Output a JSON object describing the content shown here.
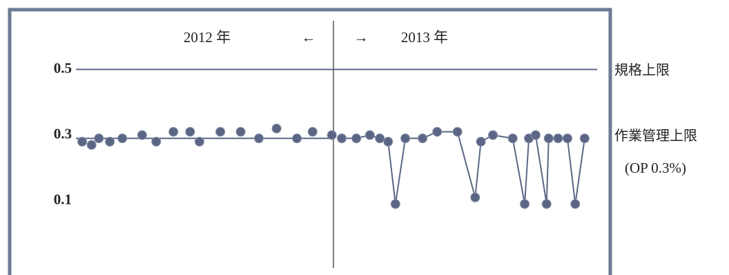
{
  "chart_data": {
    "type": "scatter",
    "annotations": [
      "2012 年",
      "←",
      "→",
      "2013 年"
    ],
    "divider_x": 49.4,
    "xlim": [
      0,
      100
    ],
    "ylim": [
      -0.12,
      0.68
    ],
    "yticks": [
      0.5,
      0.3,
      0.1
    ],
    "ref_lines": [
      {
        "value": 0.5,
        "label": "規格上限",
        "xrange": [
          0,
          100
        ]
      },
      {
        "value": 0.29,
        "label": "作業管理上限",
        "note": "(OP 0.3%)",
        "xrange": [
          0,
          49.4
        ]
      }
    ],
    "series": [
      {
        "color": "#5b6685",
        "connect": false,
        "x": [
          1.2,
          3.0,
          4.4,
          6.5,
          8.9,
          12.7,
          15.4,
          18.7,
          21.9,
          23.7,
          27.7,
          31.6,
          35.1,
          38.5,
          42.4,
          45.4,
          49.1
        ],
        "values": [
          0.28,
          0.27,
          0.29,
          0.28,
          0.29,
          0.3,
          0.28,
          0.31,
          0.31,
          0.28,
          0.31,
          0.31,
          0.29,
          0.32,
          0.29,
          0.31,
          0.3
        ]
      },
      {
        "color": "#5b6685",
        "connect": true,
        "x": [
          51.0,
          53.8,
          56.4,
          58.3,
          59.9,
          61.3,
          63.2,
          66.5,
          69.3,
          73.2,
          76.6,
          77.7,
          80.0,
          83.8,
          86.1,
          86.9,
          88.2,
          90.3,
          90.7,
          92.5,
          94.3,
          95.8,
          97.6
        ],
        "values": [
          0.29,
          0.29,
          0.3,
          0.29,
          0.28,
          0.09,
          0.29,
          0.29,
          0.31,
          0.31,
          0.11,
          0.28,
          0.3,
          0.29,
          0.09,
          0.29,
          0.3,
          0.09,
          0.29,
          0.29,
          0.29,
          0.09,
          0.29
        ]
      }
    ]
  }
}
